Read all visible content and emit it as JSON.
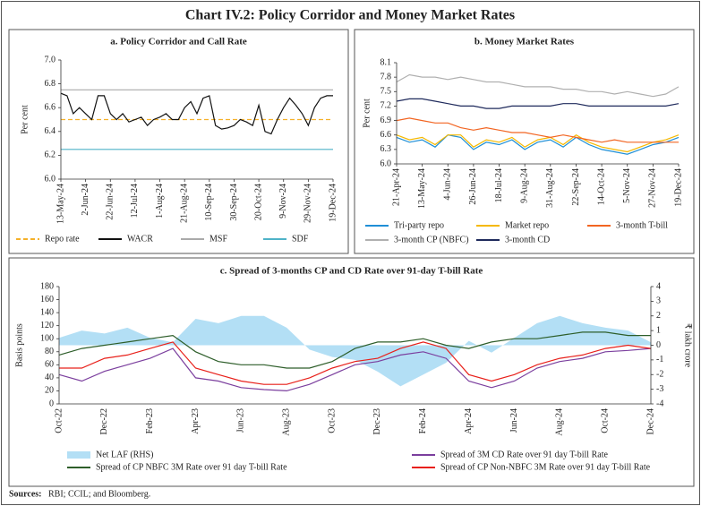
{
  "header": {
    "title": "Chart IV.2: Policy Corridor and Money Market Rates"
  },
  "chart_data": [
    {
      "type": "line",
      "title": "a. Policy Corridor and Call Rate",
      "y_label": "Per cent",
      "x": [
        "2024-05-13",
        "2024-05-18",
        "2024-05-23",
        "2024-05-28",
        "2024-06-02",
        "2024-06-07",
        "2024-06-12",
        "2024-06-17",
        "2024-06-22",
        "2024-06-27",
        "2024-07-02",
        "2024-07-07",
        "2024-07-12",
        "2024-07-17",
        "2024-07-22",
        "2024-07-27",
        "2024-08-01",
        "2024-08-06",
        "2024-08-11",
        "2024-08-16",
        "2024-08-21",
        "2024-08-26",
        "2024-08-31",
        "2024-09-05",
        "2024-09-10",
        "2024-09-15",
        "2024-09-20",
        "2024-09-25",
        "2024-09-30",
        "2024-10-05",
        "2024-10-10",
        "2024-10-15",
        "2024-10-20",
        "2024-10-25",
        "2024-10-30",
        "2024-11-04",
        "2024-11-09",
        "2024-11-14",
        "2024-11-19",
        "2024-11-24",
        "2024-11-29",
        "2024-12-04",
        "2024-12-09",
        "2024-12-14",
        "2024-12-19"
      ],
      "xlim": [
        "2024-05-13",
        "2024-12-19"
      ],
      "xticks": [
        {
          "value": "2024-05-13",
          "label": "13-May-24"
        },
        {
          "value": "2024-06-02",
          "label": "2-Jun-24"
        },
        {
          "value": "2024-06-22",
          "label": "22-Jun-24"
        },
        {
          "value": "2024-07-12",
          "label": "12-Jul-24"
        },
        {
          "value": "2024-08-01",
          "label": "1-Aug-24"
        },
        {
          "value": "2024-08-21",
          "label": "21-Aug-24"
        },
        {
          "value": "2024-09-10",
          "label": "10-Sep-24"
        },
        {
          "value": "2024-09-30",
          "label": "30-Sep-24"
        },
        {
          "value": "2024-10-20",
          "label": "20-Oct-24"
        },
        {
          "value": "2024-11-09",
          "label": "9-Nov-24"
        },
        {
          "value": "2024-11-29",
          "label": "29-Nov-24"
        },
        {
          "value": "2024-12-19",
          "label": "19-Dec-24"
        }
      ],
      "ylim": [
        6.0,
        7.0
      ],
      "yticks": [
        {
          "value": 6.0,
          "label": "6.0"
        },
        6.2,
        6.4,
        6.6,
        6.8,
        {
          "value": 7.0,
          "label": "7.0"
        }
      ],
      "legend": "bottom",
      "series": [
        {
          "name": "Repo rate",
          "color": "#f5b12a",
          "dash": true,
          "values": [
            6.5,
            6.5,
            6.5,
            6.5,
            6.5,
            6.5,
            6.5,
            6.5,
            6.5,
            6.5,
            6.5,
            6.5,
            6.5,
            6.5,
            6.5,
            6.5,
            6.5,
            6.5,
            6.5,
            6.5,
            6.5,
            6.5,
            6.5,
            6.5,
            6.5,
            6.5,
            6.5,
            6.5,
            6.5,
            6.5,
            6.5,
            6.5,
            6.5,
            6.5,
            6.5,
            6.5,
            6.5,
            6.5,
            6.5,
            6.5,
            6.5,
            6.5,
            6.5,
            6.5,
            6.5
          ]
        },
        {
          "name": "WACR",
          "color": "#111111",
          "values": [
            6.72,
            6.7,
            6.55,
            6.6,
            6.55,
            6.5,
            6.7,
            6.7,
            6.55,
            6.5,
            6.55,
            6.48,
            6.5,
            6.52,
            6.45,
            6.5,
            6.52,
            6.55,
            6.5,
            6.5,
            6.6,
            6.65,
            6.55,
            6.68,
            6.7,
            6.45,
            6.42,
            6.43,
            6.45,
            6.5,
            6.48,
            6.45,
            6.62,
            6.4,
            6.38,
            6.5,
            6.6,
            6.68,
            6.62,
            6.55,
            6.45,
            6.6,
            6.68,
            6.7,
            6.7
          ]
        },
        {
          "name": "MSF",
          "color": "#aaaaaa",
          "values": [
            6.75,
            6.75,
            6.75,
            6.75,
            6.75,
            6.75,
            6.75,
            6.75,
            6.75,
            6.75,
            6.75,
            6.75,
            6.75,
            6.75,
            6.75,
            6.75,
            6.75,
            6.75,
            6.75,
            6.75,
            6.75,
            6.75,
            6.75,
            6.75,
            6.75,
            6.75,
            6.75,
            6.75,
            6.75,
            6.75,
            6.75,
            6.75,
            6.75,
            6.75,
            6.75,
            6.75,
            6.75,
            6.75,
            6.75,
            6.75,
            6.75,
            6.75,
            6.75,
            6.75,
            6.75
          ]
        },
        {
          "name": "SDF",
          "color": "#4fb3c8",
          "values": [
            6.25,
            6.25,
            6.25,
            6.25,
            6.25,
            6.25,
            6.25,
            6.25,
            6.25,
            6.25,
            6.25,
            6.25,
            6.25,
            6.25,
            6.25,
            6.25,
            6.25,
            6.25,
            6.25,
            6.25,
            6.25,
            6.25,
            6.25,
            6.25,
            6.25,
            6.25,
            6.25,
            6.25,
            6.25,
            6.25,
            6.25,
            6.25,
            6.25,
            6.25,
            6.25,
            6.25,
            6.25,
            6.25,
            6.25,
            6.25,
            6.25,
            6.25,
            6.25,
            6.25,
            6.25
          ]
        }
      ]
    },
    {
      "type": "line",
      "title": "b. Money Market Rates",
      "y_label": "Per cent",
      "x": [
        "2024-04-21",
        "2024-05-02",
        "2024-05-13",
        "2024-05-24",
        "2024-06-04",
        "2024-06-15",
        "2024-06-26",
        "2024-07-07",
        "2024-07-18",
        "2024-07-29",
        "2024-08-09",
        "2024-08-20",
        "2024-08-31",
        "2024-09-11",
        "2024-09-22",
        "2024-10-03",
        "2024-10-14",
        "2024-10-25",
        "2024-11-05",
        "2024-11-16",
        "2024-11-27",
        "2024-12-08",
        "2024-12-19"
      ],
      "xlim": [
        "2024-04-21",
        "2024-12-19"
      ],
      "xticks": [
        {
          "value": "2024-04-21",
          "label": "21-Apr-24"
        },
        {
          "value": "2024-05-13",
          "label": "13-May-24"
        },
        {
          "value": "2024-06-04",
          "label": "4-Jun-24"
        },
        {
          "value": "2024-06-26",
          "label": "26-Jun-24"
        },
        {
          "value": "2024-07-18",
          "label": "18-Jul-24"
        },
        {
          "value": "2024-08-09",
          "label": "9-Aug-24"
        },
        {
          "value": "2024-08-31",
          "label": "31-Aug-24"
        },
        {
          "value": "2024-09-22",
          "label": "22-Sep-24"
        },
        {
          "value": "2024-10-14",
          "label": "14-Oct-24"
        },
        {
          "value": "2024-11-05",
          "label": "5-Nov-24"
        },
        {
          "value": "2024-11-27",
          "label": "27-Nov-24"
        },
        {
          "value": "2024-12-19",
          "label": "19-Dec-24"
        }
      ],
      "ylim": [
        6.0,
        8.1
      ],
      "yticks": [
        {
          "value": 6.0,
          "label": "6.0"
        },
        6.3,
        6.6,
        6.9,
        7.2,
        7.5,
        7.8,
        8.1
      ],
      "legend": "bottom",
      "series": [
        {
          "name": "Tri-party repo",
          "color": "#1f8fd6",
          "values": [
            6.55,
            6.45,
            6.5,
            6.35,
            6.6,
            6.55,
            6.3,
            6.45,
            6.4,
            6.5,
            6.3,
            6.45,
            6.5,
            6.35,
            6.55,
            6.4,
            6.3,
            6.25,
            6.2,
            6.3,
            6.4,
            6.45,
            6.55
          ]
        },
        {
          "name": "Market repo",
          "color": "#f5b800",
          "values": [
            6.6,
            6.5,
            6.55,
            6.4,
            6.6,
            6.6,
            6.35,
            6.5,
            6.45,
            6.55,
            6.35,
            6.5,
            6.55,
            6.4,
            6.6,
            6.45,
            6.35,
            6.3,
            6.25,
            6.35,
            6.45,
            6.5,
            6.6
          ]
        },
        {
          "name": "3-month T-bill",
          "color": "#f26522",
          "values": [
            6.9,
            6.95,
            6.9,
            6.85,
            6.85,
            6.75,
            6.7,
            6.75,
            6.7,
            6.65,
            6.65,
            6.6,
            6.55,
            6.6,
            6.55,
            6.5,
            6.45,
            6.5,
            6.45,
            6.45,
            6.45,
            6.45,
            6.45
          ]
        },
        {
          "name": "3-month CP (NBFC)",
          "color": "#b0b0b0",
          "values": [
            7.7,
            7.85,
            7.8,
            7.8,
            7.75,
            7.8,
            7.75,
            7.7,
            7.7,
            7.65,
            7.6,
            7.6,
            7.6,
            7.55,
            7.55,
            7.5,
            7.5,
            7.45,
            7.5,
            7.45,
            7.4,
            7.45,
            7.6
          ]
        },
        {
          "name": "3-month CD",
          "color": "#1f2a5c",
          "values": [
            7.3,
            7.35,
            7.35,
            7.3,
            7.25,
            7.2,
            7.2,
            7.15,
            7.15,
            7.2,
            7.2,
            7.2,
            7.2,
            7.25,
            7.25,
            7.2,
            7.2,
            7.2,
            7.2,
            7.2,
            7.2,
            7.2,
            7.25
          ]
        }
      ]
    },
    {
      "type": "line",
      "title": "c. Spread of 3-months CP and CD Rate over 91-day T-bill Rate",
      "y_label": "Basis points",
      "y2_label": "₹ lakh crore",
      "categories": [
        "Oct-22",
        null,
        "Dec-22",
        null,
        "Feb-23",
        null,
        "Apr-23",
        null,
        "Jun-23",
        null,
        "Aug-23",
        null,
        "Oct-23",
        null,
        "Dec-23",
        null,
        "Feb-24",
        null,
        "Apr-24",
        null,
        "Jun-24",
        null,
        "Aug-24",
        null,
        "Oct-24",
        null,
        "Dec-24"
      ],
      "ylim": [
        0,
        180
      ],
      "yticks": [
        0,
        20,
        40,
        60,
        80,
        100,
        120,
        140,
        160,
        180
      ],
      "y2lim": [
        -4,
        4
      ],
      "y2ticks": [
        -4,
        -3,
        -2,
        -1,
        0,
        1,
        2,
        3,
        4
      ],
      "legend": "bottom",
      "series": [
        {
          "name": "Net LAF (RHS)",
          "color": "#b3dff5",
          "type": "area",
          "axis": "y2",
          "values": [
            0.5,
            1.0,
            0.8,
            1.2,
            0.5,
            0.2,
            1.8,
            1.5,
            2.0,
            2.0,
            1.2,
            -0.3,
            -0.8,
            -1.0,
            -1.8,
            -2.8,
            -2.0,
            -1.2,
            0.3,
            -0.5,
            0.5,
            1.5,
            2.0,
            1.5,
            1.2,
            1.0,
            0.2
          ]
        },
        {
          "name": "Spread of 3M CD Rate over 91 day T-bill Rate",
          "color": "#7b3f9e",
          "values": [
            45,
            35,
            50,
            60,
            70,
            85,
            40,
            35,
            25,
            22,
            20,
            30,
            45,
            60,
            65,
            75,
            80,
            70,
            35,
            25,
            35,
            55,
            65,
            70,
            80,
            82,
            85
          ]
        },
        {
          "name": "Spread of CP NBFC 3M Rate over 91 day T-bill Rate",
          "color": "#2e5e2a",
          "values": [
            75,
            85,
            90,
            95,
            100,
            105,
            80,
            65,
            60,
            60,
            55,
            55,
            65,
            85,
            95,
            95,
            100,
            90,
            85,
            95,
            100,
            100,
            105,
            110,
            110,
            105,
            105
          ]
        },
        {
          "name": "Spread of CP Non-NBFC 3M Rate over 91 day T-bill Rate",
          "color": "#e8201a",
          "values": [
            55,
            55,
            70,
            75,
            85,
            95,
            55,
            45,
            35,
            30,
            30,
            40,
            55,
            65,
            70,
            85,
            95,
            85,
            45,
            35,
            45,
            60,
            70,
            75,
            85,
            90,
            85
          ]
        }
      ]
    }
  ],
  "footer": {
    "source_label": "Sources:",
    "source": "RBI; CCIL; and Bloomberg."
  }
}
